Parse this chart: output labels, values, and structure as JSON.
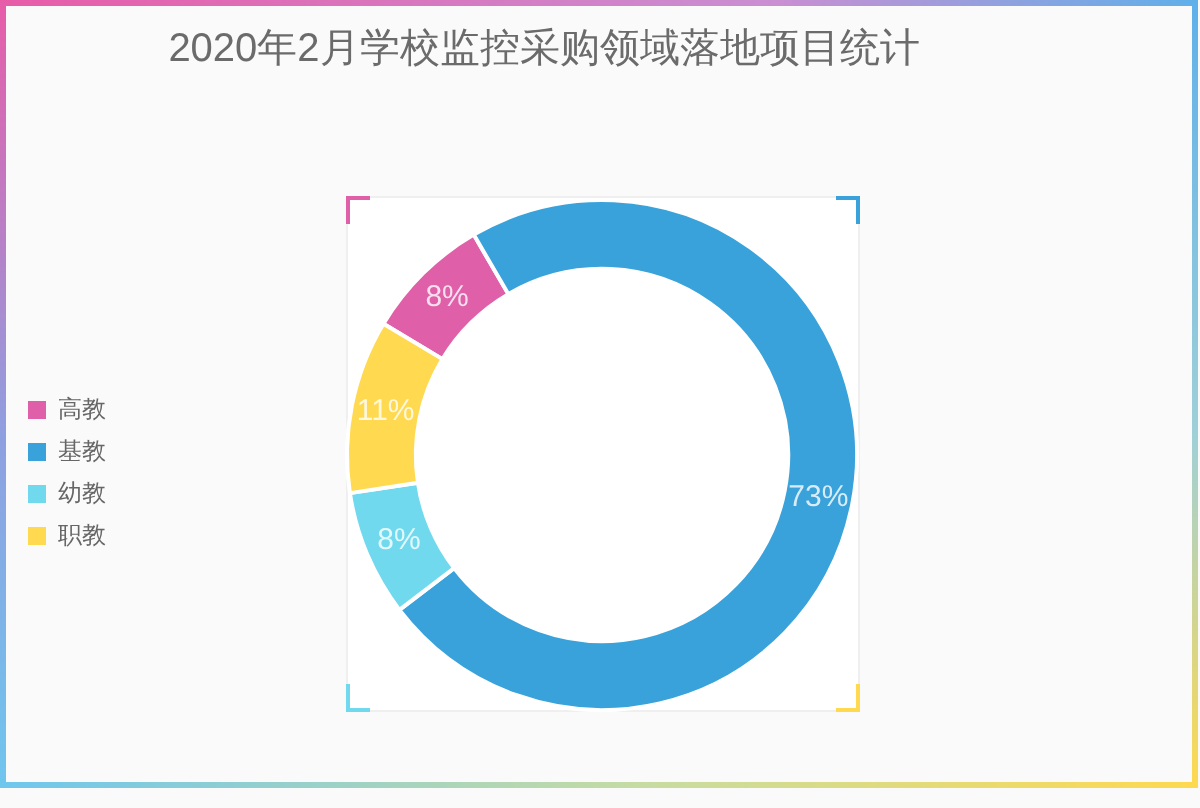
{
  "chart_data": {
    "type": "donut",
    "title": "2020年2月学校监控采购领域落地项目统计",
    "categories": [
      "高教",
      "基教",
      "幼教",
      "职教"
    ],
    "values": [
      8,
      73,
      8,
      11
    ],
    "colors": [
      "#df5fa9",
      "#39a2da",
      "#71d9ee",
      "#ffd94f"
    ],
    "value_labels": [
      "8%",
      "73%",
      "8%",
      "11%"
    ],
    "legend": "left"
  }
}
